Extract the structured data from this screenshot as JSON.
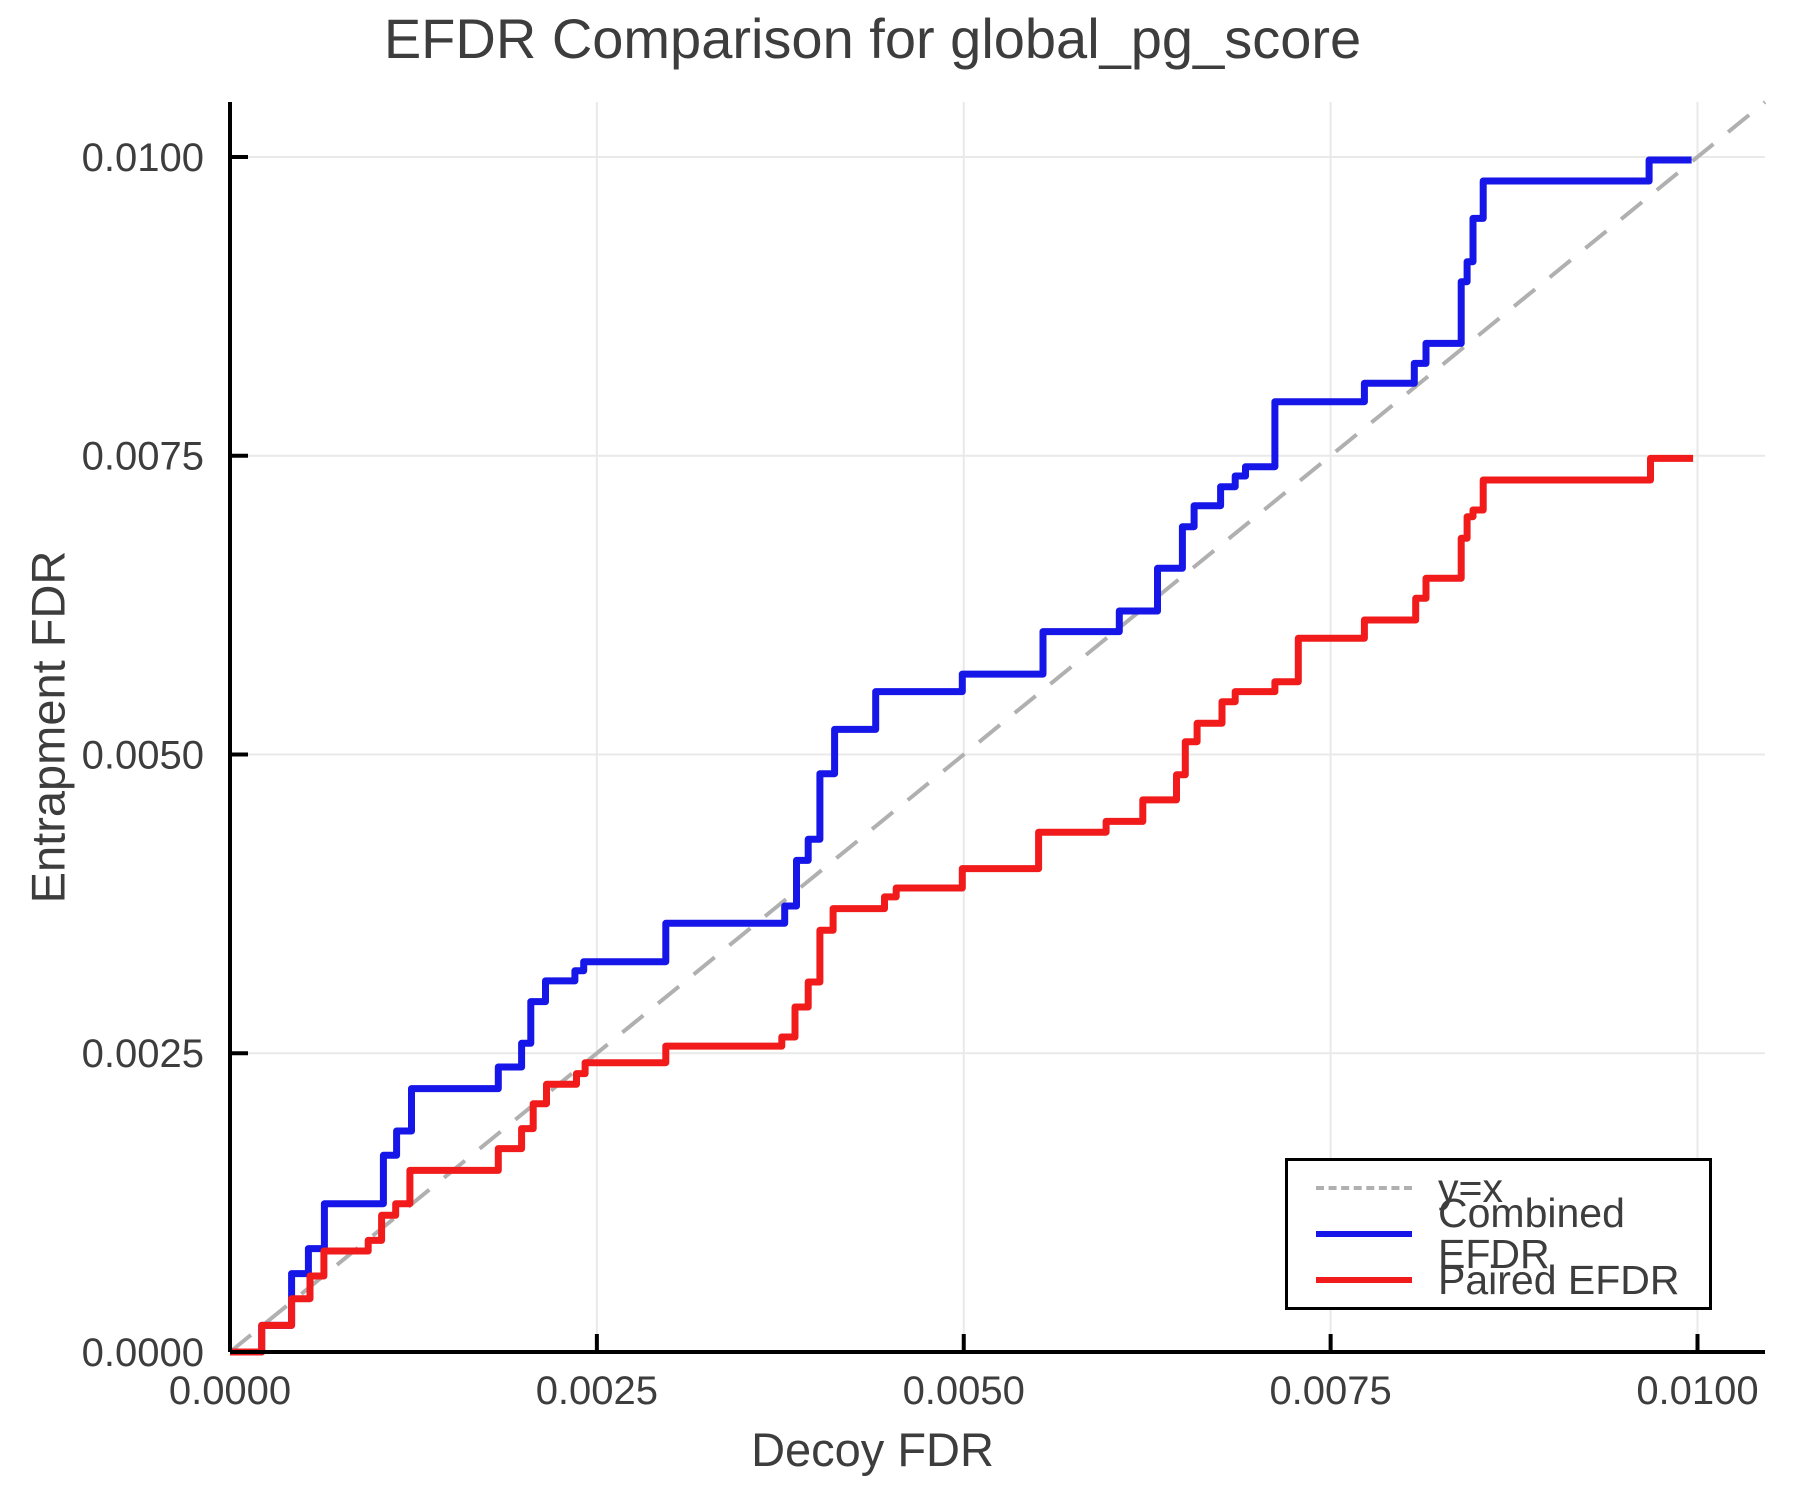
{
  "figure": {
    "background": "#ffffff"
  },
  "chart_data": {
    "type": "line",
    "title": "EFDR Comparison for global_pg_score",
    "xlabel": "Decoy FDR",
    "ylabel": "Entrapment FDR",
    "xlim": [
      0,
      0.01046
    ],
    "ylim": [
      0,
      0.01046
    ],
    "grid": true,
    "colors": {
      "grid": "#e9e9e9",
      "spine": "#000000",
      "text": "#3d3d3d",
      "reference": "#b0b0b0",
      "combined": "#1616e8",
      "paired": "#f21b1b"
    },
    "xticks": {
      "values": [
        0,
        0.0025,
        0.005,
        0.0075,
        0.01
      ],
      "labels": [
        "0.0000",
        "0.0025",
        "0.0050",
        "0.0075",
        "0.0100"
      ]
    },
    "yticks": {
      "values": [
        0,
        0.0025,
        0.005,
        0.0075,
        0.01
      ],
      "labels": [
        "0.0000",
        "0.0025",
        "0.0050",
        "0.0075",
        "0.0100"
      ]
    },
    "legend": {
      "position": "bottom-right",
      "entries": [
        {
          "label": "y=x",
          "color": "#b0b0b0",
          "dash": true
        },
        {
          "label": "Combined EFDR",
          "color": "#1616e8",
          "dash": false
        },
        {
          "label": "Paired EFDR",
          "color": "#f21b1b",
          "dash": false
        }
      ]
    },
    "series": [
      {
        "name": "y=x",
        "color": "#b0b0b0",
        "dash": true,
        "width": 4,
        "points": [
          [
            0,
            0
          ],
          [
            0.01046,
            0.01046
          ]
        ]
      },
      {
        "name": "Combined EFDR",
        "color": "#1616e8",
        "dash": false,
        "width": 7,
        "points": [
          [
            0,
            0
          ],
          [
            0.000216,
            0
          ],
          [
            0.000216,
            0.000223
          ],
          [
            0.00042,
            0.000223
          ],
          [
            0.00042,
            0.000656
          ],
          [
            0.000534,
            0.000656
          ],
          [
            0.000534,
            0.000865
          ],
          [
            0.000643,
            0.000865
          ],
          [
            0.000643,
            0.001241
          ],
          [
            0.001045,
            0.001241
          ],
          [
            0.001045,
            0.001646
          ],
          [
            0.001135,
            0.001646
          ],
          [
            0.001135,
            0.001849
          ],
          [
            0.001237,
            0.001849
          ],
          [
            0.001237,
            0.002204
          ],
          [
            0.001828,
            0.002204
          ],
          [
            0.001828,
            0.002385
          ],
          [
            0.001987,
            0.002385
          ],
          [
            0.001987,
            0.002583
          ],
          [
            0.00205,
            0.002583
          ],
          [
            0.00205,
            0.002932
          ],
          [
            0.00215,
            0.002932
          ],
          [
            0.00215,
            0.003105
          ],
          [
            0.00235,
            0.003105
          ],
          [
            0.00235,
            0.00319
          ],
          [
            0.00241,
            0.00319
          ],
          [
            0.00241,
            0.003266
          ],
          [
            0.00297,
            0.003266
          ],
          [
            0.00297,
            0.003587
          ],
          [
            0.00378,
            0.003587
          ],
          [
            0.00378,
            0.003732
          ],
          [
            0.00386,
            0.003732
          ],
          [
            0.00386,
            0.004114
          ],
          [
            0.00394,
            0.004114
          ],
          [
            0.00394,
            0.00429
          ],
          [
            0.00402,
            0.00429
          ],
          [
            0.00402,
            0.004839
          ],
          [
            0.00412,
            0.004839
          ],
          [
            0.00412,
            0.00521
          ],
          [
            0.0044,
            0.00521
          ],
          [
            0.0044,
            0.005526
          ],
          [
            0.00499,
            0.005526
          ],
          [
            0.00499,
            0.005673
          ],
          [
            0.00554,
            0.005673
          ],
          [
            0.00554,
            0.006028
          ],
          [
            0.00606,
            0.006028
          ],
          [
            0.00606,
            0.006201
          ],
          [
            0.00632,
            0.006201
          ],
          [
            0.00632,
            0.006558
          ],
          [
            0.00649,
            0.006558
          ],
          [
            0.00649,
            0.006906
          ],
          [
            0.00657,
            0.006906
          ],
          [
            0.00657,
            0.007082
          ],
          [
            0.00675,
            0.007082
          ],
          [
            0.00675,
            0.007241
          ],
          [
            0.00685,
            0.007241
          ],
          [
            0.00685,
            0.00733
          ],
          [
            0.00692,
            0.00733
          ],
          [
            0.00692,
            0.007408
          ],
          [
            0.00712,
            0.007408
          ],
          [
            0.00712,
            0.007952
          ],
          [
            0.00773,
            0.007952
          ],
          [
            0.00773,
            0.008106
          ],
          [
            0.00807,
            0.008106
          ],
          [
            0.00807,
            0.008273
          ],
          [
            0.00815,
            0.008273
          ],
          [
            0.00815,
            0.00844
          ],
          [
            0.00839,
            0.00844
          ],
          [
            0.00839,
            0.008956
          ],
          [
            0.00843,
            0.008956
          ],
          [
            0.00843,
            0.009124
          ],
          [
            0.00847,
            0.009124
          ],
          [
            0.00847,
            0.009486
          ],
          [
            0.00854,
            0.009486
          ],
          [
            0.00854,
            0.009799
          ],
          [
            0.00967,
            0.009799
          ],
          [
            0.00967,
            0.009975
          ],
          [
            0.00996,
            0.009975
          ]
        ]
      },
      {
        "name": "Paired EFDR",
        "color": "#f21b1b",
        "dash": false,
        "width": 7,
        "points": [
          [
            0,
            0
          ],
          [
            0.000216,
            0
          ],
          [
            0.000216,
            0.000223
          ],
          [
            0.00042,
            0.000223
          ],
          [
            0.00042,
            0.000446
          ],
          [
            0.000545,
            0.000446
          ],
          [
            0.000545,
            0.000636
          ],
          [
            0.00064,
            0.000636
          ],
          [
            0.00064,
            0.000845
          ],
          [
            0.000942,
            0.000845
          ],
          [
            0.000942,
            0.000934
          ],
          [
            0.001033,
            0.000934
          ],
          [
            0.001033,
            0.001144
          ],
          [
            0.001129,
            0.001144
          ],
          [
            0.001129,
            0.001241
          ],
          [
            0.001226,
            0.001241
          ],
          [
            0.001226,
            0.00152
          ],
          [
            0.001828,
            0.00152
          ],
          [
            0.001828,
            0.001702
          ],
          [
            0.001987,
            0.001702
          ],
          [
            0.001987,
            0.001869
          ],
          [
            0.002066,
            0.001869
          ],
          [
            0.002066,
            0.002078
          ],
          [
            0.002157,
            0.002078
          ],
          [
            0.002157,
            0.00224
          ],
          [
            0.002361,
            0.00224
          ],
          [
            0.002361,
            0.00233
          ],
          [
            0.00242,
            0.00233
          ],
          [
            0.00242,
            0.002421
          ],
          [
            0.00297,
            0.002421
          ],
          [
            0.00297,
            0.00256
          ],
          [
            0.00376,
            0.00256
          ],
          [
            0.00376,
            0.002636
          ],
          [
            0.00385,
            0.002636
          ],
          [
            0.00385,
            0.002887
          ],
          [
            0.00394,
            0.002887
          ],
          [
            0.00394,
            0.003096
          ],
          [
            0.00402,
            0.003096
          ],
          [
            0.00402,
            0.003529
          ],
          [
            0.00411,
            0.003529
          ],
          [
            0.00411,
            0.00371
          ],
          [
            0.00446,
            0.00371
          ],
          [
            0.00446,
            0.003808
          ],
          [
            0.00454,
            0.003808
          ],
          [
            0.00454,
            0.003883
          ],
          [
            0.00499,
            0.003883
          ],
          [
            0.00499,
            0.004045
          ],
          [
            0.00551,
            0.004045
          ],
          [
            0.00551,
            0.00435
          ],
          [
            0.00597,
            0.00435
          ],
          [
            0.00597,
            0.00444
          ],
          [
            0.00622,
            0.00444
          ],
          [
            0.00622,
            0.00462
          ],
          [
            0.00645,
            0.00462
          ],
          [
            0.00645,
            0.00483
          ],
          [
            0.00651,
            0.00483
          ],
          [
            0.00651,
            0.005107
          ],
          [
            0.00659,
            0.005107
          ],
          [
            0.00659,
            0.005261
          ],
          [
            0.00676,
            0.005261
          ],
          [
            0.00676,
            0.005442
          ],
          [
            0.00685,
            0.005442
          ],
          [
            0.00685,
            0.005526
          ],
          [
            0.00693,
            0.005526
          ],
          [
            0.00712,
            0.005526
          ],
          [
            0.00712,
            0.005609
          ],
          [
            0.00728,
            0.005609
          ],
          [
            0.00728,
            0.005972
          ],
          [
            0.00773,
            0.005972
          ],
          [
            0.00773,
            0.006125
          ],
          [
            0.00808,
            0.006125
          ],
          [
            0.00808,
            0.006307
          ],
          [
            0.00815,
            0.006307
          ],
          [
            0.00815,
            0.006474
          ],
          [
            0.00839,
            0.006474
          ],
          [
            0.00839,
            0.006809
          ],
          [
            0.00843,
            0.006809
          ],
          [
            0.00843,
            0.00699
          ],
          [
            0.00847,
            0.00699
          ],
          [
            0.00847,
            0.007046
          ],
          [
            0.00854,
            0.007046
          ],
          [
            0.00854,
            0.007297
          ],
          [
            0.00968,
            0.007297
          ],
          [
            0.00968,
            0.007478
          ],
          [
            0.00997,
            0.007478
          ]
        ]
      }
    ]
  }
}
